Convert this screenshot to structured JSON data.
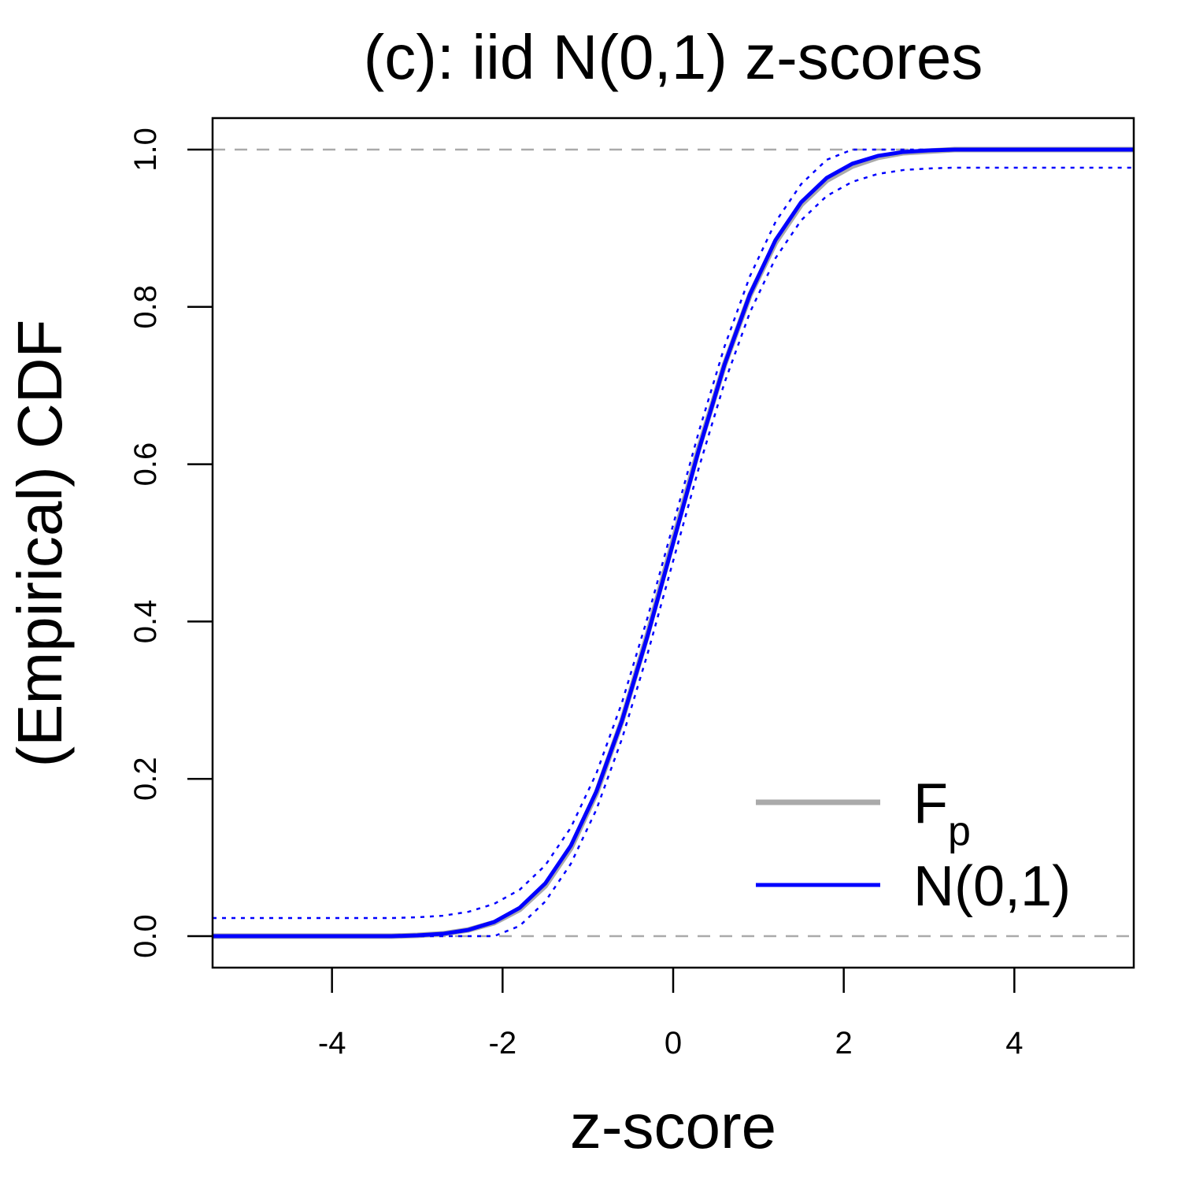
{
  "chart_data": {
    "type": "line",
    "title": "(c): iid N(0,1) z-scores",
    "xlabel": "z-score",
    "ylabel": "(Empirical) CDF",
    "x": [
      -5.4,
      -5.1,
      -4.8,
      -4.5,
      -4.2,
      -3.9,
      -3.6,
      -3.3,
      -3.0,
      -2.7,
      -2.4,
      -2.1,
      -1.8,
      -1.5,
      -1.2,
      -0.9,
      -0.6,
      -0.3,
      0,
      0.3,
      0.6,
      0.9,
      1.2,
      1.5,
      1.8,
      2.1,
      2.4,
      2.7,
      3.0,
      3.3,
      3.6,
      3.9,
      4.2,
      4.5,
      4.8,
      5.1,
      5.4
    ],
    "series": [
      {
        "name": "Fp",
        "name_style": "subscript-tail",
        "color": "#aaaaaa",
        "width": 7,
        "dash": "solid",
        "values": [
          0,
          0,
          0,
          0,
          0,
          0,
          0,
          0,
          0.001,
          0.003,
          0.008,
          0.017,
          0.034,
          0.064,
          0.112,
          0.182,
          0.274,
          0.384,
          0.503,
          0.62,
          0.726,
          0.815,
          0.882,
          0.93,
          0.961,
          0.979,
          0.99,
          0.996,
          0.998,
          1,
          1,
          1,
          1,
          1,
          1,
          1,
          1
        ]
      },
      {
        "name": "N(0,1)",
        "color": "#0000ff",
        "width": 5,
        "dash": "solid",
        "values": [
          0,
          0,
          0,
          0,
          0,
          0,
          0,
          0,
          0.001,
          0.003,
          0.008,
          0.018,
          0.036,
          0.067,
          0.115,
          0.184,
          0.274,
          0.382,
          0.5,
          0.618,
          0.726,
          0.816,
          0.885,
          0.933,
          0.964,
          0.982,
          0.992,
          0.997,
          0.999,
          1,
          1,
          1,
          1,
          1,
          1,
          1,
          1
        ]
      },
      {
        "color": "#0000ff",
        "width": 2.5,
        "dash": "dotted",
        "values": [
          0.023,
          0.023,
          0.023,
          0.023,
          0.023,
          0.023,
          0.023,
          0.023,
          0.024,
          0.026,
          0.031,
          0.041,
          0.059,
          0.09,
          0.138,
          0.207,
          0.297,
          0.405,
          0.523,
          0.641,
          0.749,
          0.839,
          0.908,
          0.956,
          0.987,
          1,
          1,
          1,
          1,
          1,
          1,
          1,
          1,
          1,
          1,
          1,
          1
        ]
      },
      {
        "color": "#0000ff",
        "width": 2.5,
        "dash": "dotted",
        "values": [
          0,
          0,
          0,
          0,
          0,
          0,
          0,
          0,
          0,
          0,
          0,
          0,
          0.013,
          0.044,
          0.092,
          0.161,
          0.251,
          0.359,
          0.477,
          0.595,
          0.703,
          0.793,
          0.862,
          0.91,
          0.941,
          0.959,
          0.969,
          0.974,
          0.976,
          0.977,
          0.977,
          0.977,
          0.977,
          0.977,
          0.977,
          0.977,
          0.977
        ]
      }
    ],
    "hlines": [
      0,
      1
    ],
    "hline_color": "#aaaaaa",
    "xlim": [
      -5.4,
      5.4
    ],
    "ylim": [
      -0.04,
      1.04
    ],
    "xticks": [
      -4,
      -2,
      0,
      2,
      4
    ],
    "yticks": [
      {
        "value": 0,
        "label": "0.0"
      },
      0.2,
      0.4,
      0.6,
      0.8,
      {
        "value": 1,
        "label": "1.0"
      }
    ],
    "grid": false,
    "legend_position": "bottom right"
  }
}
